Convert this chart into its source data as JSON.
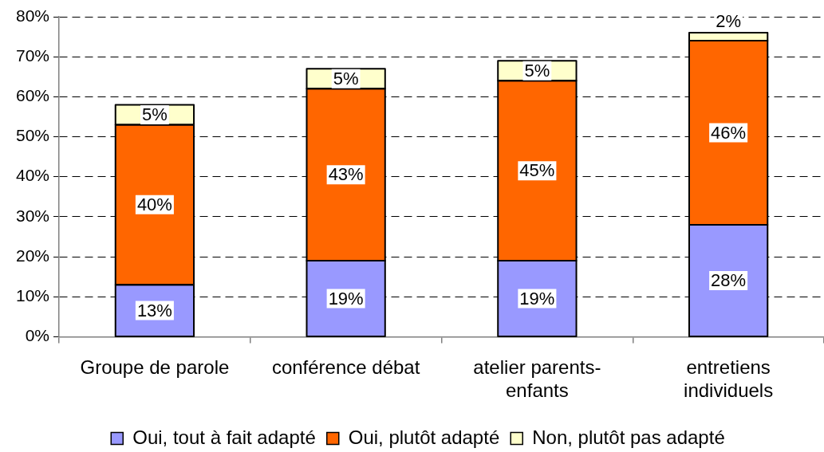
{
  "chart_data": {
    "type": "bar",
    "stacked": true,
    "categories": [
      "Groupe de parole",
      "conférence débat",
      "atelier parents-enfants",
      "entretiens individuels"
    ],
    "series": [
      {
        "name": "Oui, tout à fait adapté",
        "color": "#9999ff",
        "values": [
          13,
          19,
          19,
          28
        ],
        "value_labels": [
          "13%",
          "19%",
          "19%",
          "28%"
        ]
      },
      {
        "name": "Oui, plutôt adapté",
        "color": "#ff6600",
        "values": [
          40,
          43,
          45,
          46
        ],
        "value_labels": [
          "40%",
          "43%",
          "45%",
          "46%"
        ]
      },
      {
        "name": "Non, plutôt pas adapté",
        "color": "#ffffcc",
        "values": [
          5,
          5,
          5,
          2
        ],
        "value_labels": [
          "5%",
          "5%",
          "5%",
          "2%"
        ]
      }
    ],
    "ylim": [
      0,
      80
    ],
    "yticks": [
      {
        "value": 0,
        "label": "0%"
      },
      {
        "value": 10,
        "label": "10%"
      },
      {
        "value": 20,
        "label": "20%"
      },
      {
        "value": 30,
        "label": "30%"
      },
      {
        "value": 40,
        "label": "40%"
      },
      {
        "value": 50,
        "label": "50%"
      },
      {
        "value": 60,
        "label": "60%"
      },
      {
        "value": 70,
        "label": "70%"
      },
      {
        "value": 80,
        "label": "80%"
      }
    ],
    "grid": "y",
    "legend": "bottom"
  }
}
